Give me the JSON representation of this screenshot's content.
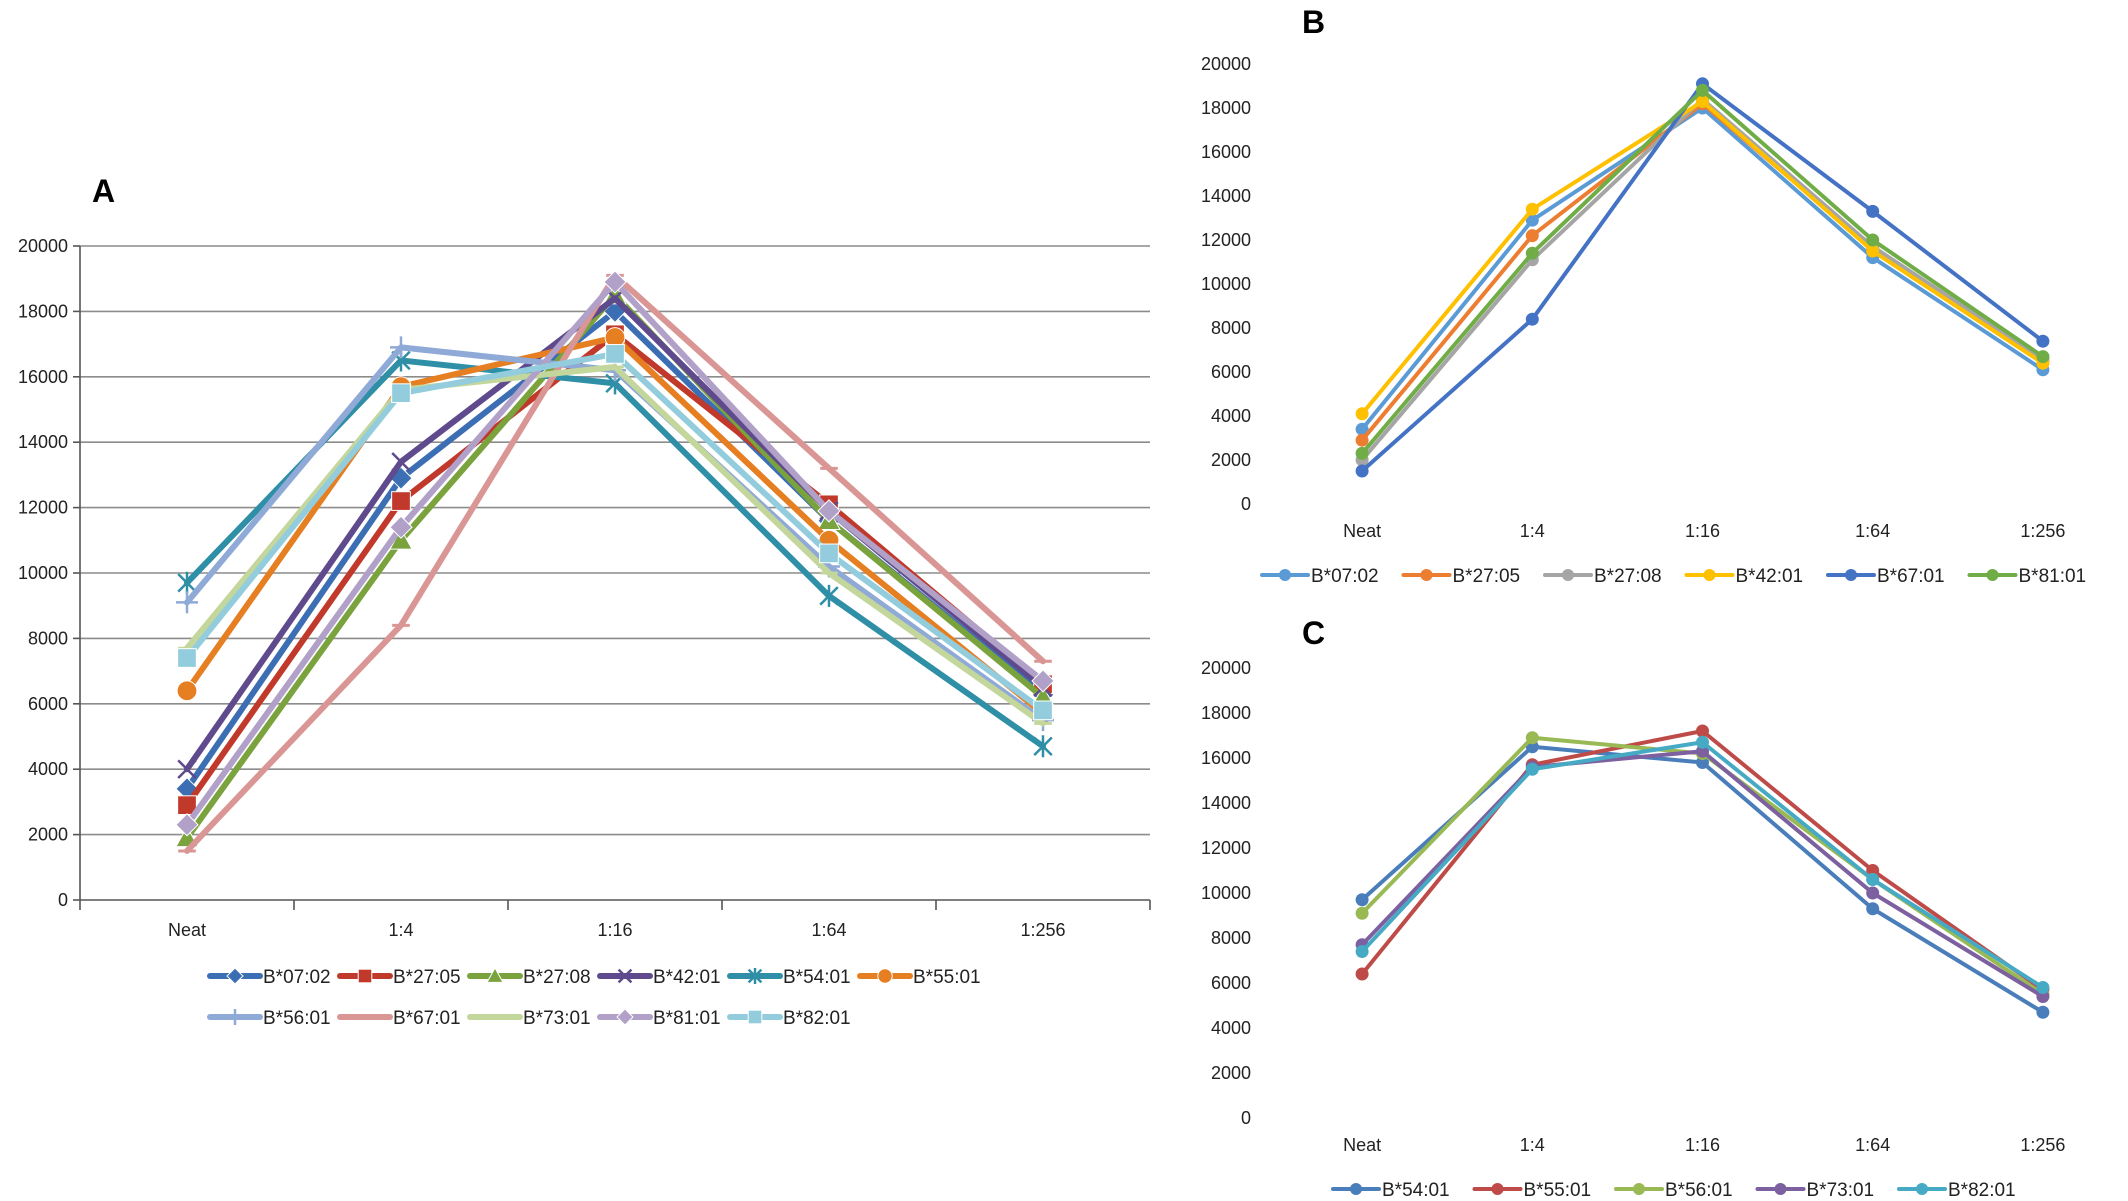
{
  "chart_data": [
    {
      "panel": "A",
      "type": "line",
      "categories": [
        "Neat",
        "1:4",
        "1:16",
        "1:64",
        "1:256"
      ],
      "ylim": [
        0,
        20000
      ],
      "yticks": [
        0,
        2000,
        4000,
        6000,
        8000,
        10000,
        12000,
        14000,
        16000,
        18000,
        20000
      ],
      "grid": true,
      "legend_position": "bottom",
      "series": [
        {
          "name": "B*07:02",
          "color": "#3c6eb4",
          "marker": "diamond",
          "values": [
            3400,
            12900,
            18000,
            11600,
            6300
          ]
        },
        {
          "name": "B*27:05",
          "color": "#c0392b",
          "marker": "square",
          "values": [
            2900,
            12200,
            17300,
            12100,
            6600
          ]
        },
        {
          "name": "B*27:08",
          "color": "#7aa23d",
          "marker": "triangle",
          "values": [
            1900,
            11000,
            18500,
            11600,
            6200
          ]
        },
        {
          "name": "B*42:01",
          "color": "#5e4a8c",
          "marker": "x",
          "values": [
            4000,
            13400,
            18400,
            11900,
            6500
          ]
        },
        {
          "name": "B*54:01",
          "color": "#2e8fa6",
          "marker": "star",
          "values": [
            9700,
            16500,
            15800,
            9300,
            4700
          ]
        },
        {
          "name": "B*55:01",
          "color": "#e67e22",
          "marker": "circle",
          "values": [
            6400,
            15700,
            17200,
            11000,
            5700
          ]
        },
        {
          "name": "B*56:01",
          "color": "#8faad6",
          "marker": "plus",
          "values": [
            9100,
            16900,
            16200,
            10200,
            5500
          ]
        },
        {
          "name": "B*67:01",
          "color": "#d99694",
          "marker": "dash",
          "values": [
            1500,
            8400,
            19100,
            13200,
            7300
          ]
        },
        {
          "name": "B*73:01",
          "color": "#c3d69b",
          "marker": "dash",
          "values": [
            7700,
            15600,
            16300,
            10000,
            5400
          ]
        },
        {
          "name": "B*81:01",
          "color": "#b1a0c7",
          "marker": "diamond",
          "values": [
            2300,
            11400,
            18900,
            11900,
            6700
          ]
        },
        {
          "name": "B*82:01",
          "color": "#93cddd",
          "marker": "square",
          "values": [
            7400,
            15500,
            16700,
            10600,
            5800
          ]
        }
      ]
    },
    {
      "panel": "B",
      "type": "line",
      "categories": [
        "Neat",
        "1:4",
        "1:16",
        "1:64",
        "1:256"
      ],
      "ylim": [
        0,
        20000
      ],
      "yticks": [
        0,
        2000,
        4000,
        6000,
        8000,
        10000,
        12000,
        14000,
        16000,
        18000,
        20000
      ],
      "grid": false,
      "legend_position": "bottom",
      "series": [
        {
          "name": "B*07:02",
          "color": "#5b9bd5",
          "values": [
            3400,
            12900,
            18000,
            11200,
            6100
          ]
        },
        {
          "name": "B*27:05",
          "color": "#ed7d31",
          "values": [
            2900,
            12200,
            18200,
            11600,
            6500
          ]
        },
        {
          "name": "B*27:08",
          "color": "#a5a5a5",
          "values": [
            2000,
            11100,
            18400,
            11700,
            6600
          ]
        },
        {
          "name": "B*42:01",
          "color": "#ffc000",
          "values": [
            4100,
            13400,
            18300,
            11500,
            6400
          ]
        },
        {
          "name": "B*67:01",
          "color": "#4472c4",
          "values": [
            1500,
            8400,
            19100,
            13300,
            7400
          ]
        },
        {
          "name": "B*81:01",
          "color": "#70ad47",
          "values": [
            2300,
            11400,
            18800,
            12000,
            6700
          ]
        }
      ]
    },
    {
      "panel": "C",
      "type": "line",
      "categories": [
        "Neat",
        "1:4",
        "1:16",
        "1:64",
        "1:256"
      ],
      "ylim": [
        0,
        20000
      ],
      "yticks": [
        0,
        2000,
        4000,
        6000,
        8000,
        10000,
        12000,
        14000,
        16000,
        18000,
        20000
      ],
      "grid": false,
      "legend_position": "bottom",
      "series": [
        {
          "name": "B*54:01",
          "color": "#4a7ebb",
          "values": [
            9700,
            16500,
            15800,
            9300,
            4700
          ]
        },
        {
          "name": "B*55:01",
          "color": "#be4b48",
          "values": [
            6400,
            15700,
            17200,
            11000,
            5700
          ]
        },
        {
          "name": "B*56:01",
          "color": "#98b954",
          "values": [
            9100,
            16900,
            16200,
            10600,
            5500
          ]
        },
        {
          "name": "B*73:01",
          "color": "#7d60a0",
          "values": [
            7700,
            15600,
            16300,
            10000,
            5400
          ]
        },
        {
          "name": "B*82:01",
          "color": "#46aac5",
          "values": [
            7400,
            15500,
            16700,
            10600,
            5800
          ]
        }
      ]
    }
  ]
}
